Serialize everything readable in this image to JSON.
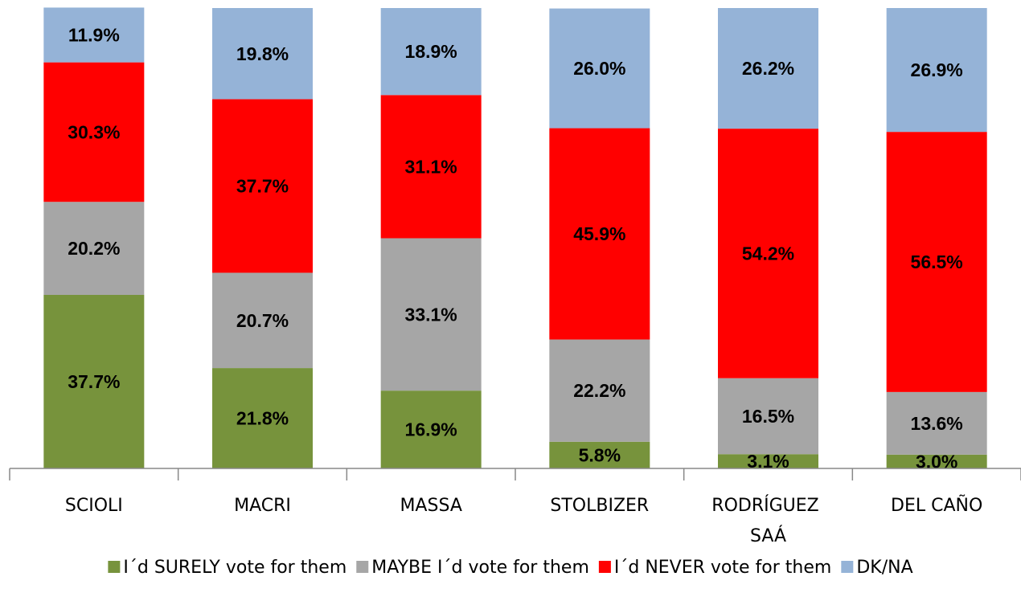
{
  "chart_data": {
    "type": "stacked_bar",
    "categories": [
      "SCIOLI",
      "MACRI",
      "MASSA",
      "STOLBIZER",
      "RODRÍGUEZ SAÁ",
      "DEL CAÑO"
    ],
    "ylim": [
      0,
      100
    ],
    "series": [
      {
        "name": "I´d SURELY vote for them",
        "color": "#77933c",
        "values": [
          37.7,
          21.8,
          16.9,
          5.8,
          3.1,
          3.0
        ],
        "value_labels": [
          "37.7%",
          "21.8%",
          "16.9%",
          "5.8%",
          "3.1%",
          "3.0%"
        ]
      },
      {
        "name": "MAYBE I´d vote for them",
        "color": "#a6a6a6",
        "values": [
          20.2,
          20.7,
          33.1,
          22.2,
          16.5,
          13.6
        ],
        "value_labels": [
          "20.2%",
          "20.7%",
          "33.1%",
          "22.2%",
          "16.5%",
          "13.6%"
        ]
      },
      {
        "name": "I´d NEVER vote for them",
        "color": "#ff0000",
        "values": [
          30.3,
          37.7,
          31.1,
          45.9,
          54.2,
          56.5
        ],
        "value_labels": [
          "30.3%",
          "37.7%",
          "31.1%",
          "45.9%",
          "54.2%",
          "56.5%"
        ]
      },
      {
        "name": "DK/NA",
        "color": "#95b3d7",
        "values": [
          11.9,
          19.8,
          18.9,
          26.0,
          26.2,
          26.9
        ],
        "value_labels": [
          "11.9%",
          "19.8%",
          "18.9%",
          "26.0%",
          "26.2%",
          "26.9%"
        ]
      }
    ]
  }
}
